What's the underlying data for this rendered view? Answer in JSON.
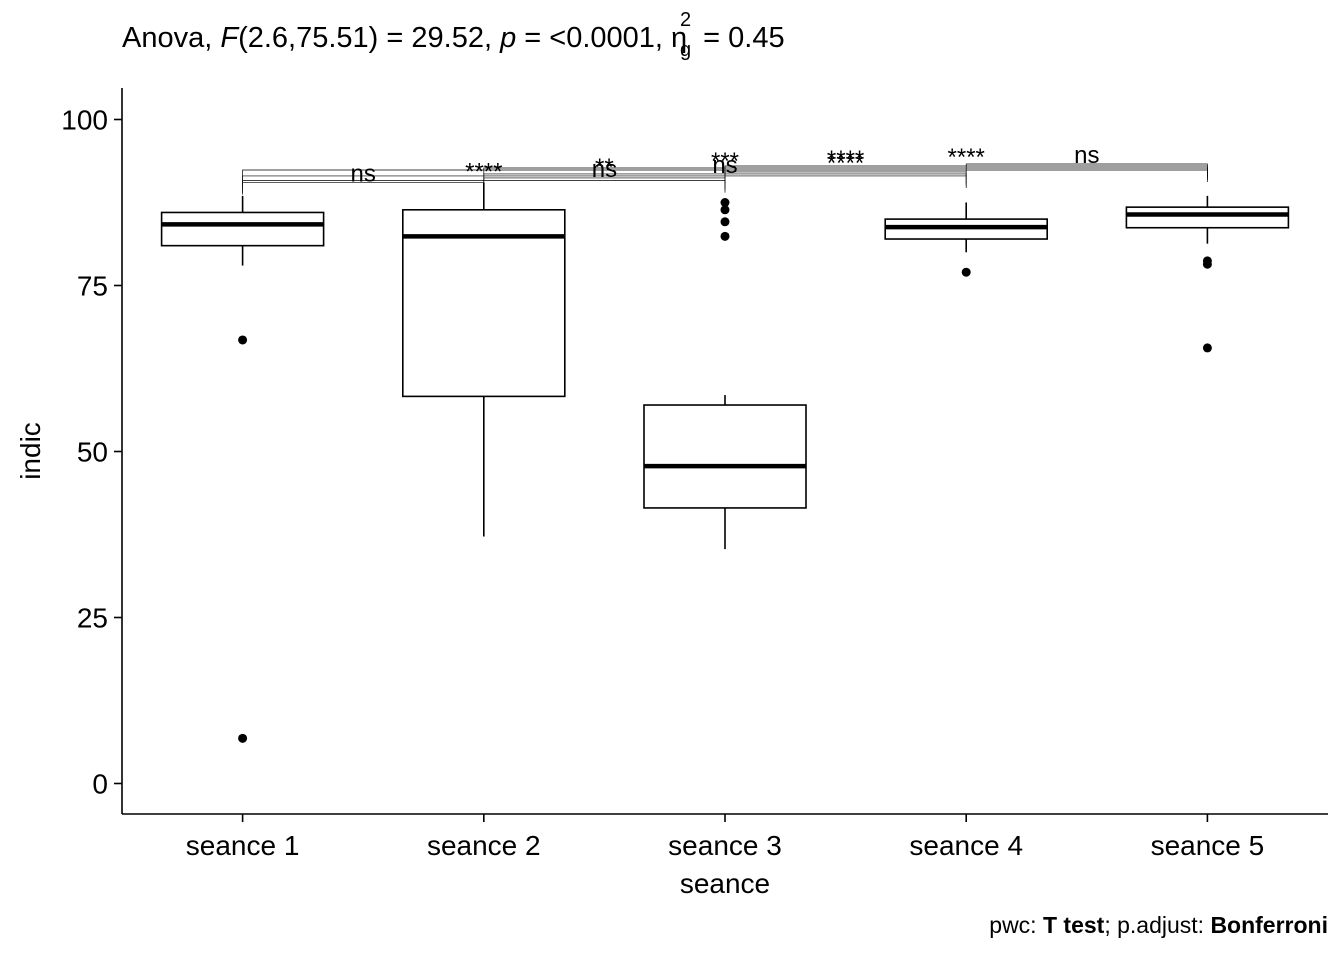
{
  "title": {
    "prefix": "Anova,",
    "f_symbol": "F",
    "f_args": "(2.6,75.51) = 29.52,",
    "p_symbol": "p",
    "p_value": "= <0.0001,",
    "eta_symbol": "η",
    "eta_sup": "2",
    "eta_sub": "g",
    "eta_value": "= 0.45"
  },
  "caption": {
    "pwc_label": "pwc:",
    "pwc_value": "T test",
    "sep": "; p.adjust:",
    "adjust_value": "Bonferroni"
  },
  "chart_data": {
    "type": "boxplot",
    "xlabel": "seance",
    "ylabel": "indic",
    "ylim": [
      -4.5,
      100
    ],
    "yticks": [
      0,
      25,
      50,
      75,
      100
    ],
    "grid": false,
    "categories": [
      "seance 1",
      "seance 2",
      "seance 3",
      "seance 4",
      "seance 5"
    ],
    "boxes": [
      {
        "category": "seance 1",
        "whisker_low": 78,
        "q1": 81,
        "median": 84.2,
        "q3": 86,
        "whisker_high": 88.5,
        "outliers": [
          66.8,
          6.8
        ]
      },
      {
        "category": "seance 2",
        "whisker_low": 37.2,
        "q1": 58.3,
        "median": 82.4,
        "q3": 86.4,
        "whisker_high": 90.5,
        "outliers": []
      },
      {
        "category": "seance 3",
        "whisker_low": 35.3,
        "q1": 41.5,
        "median": 47.8,
        "q3": 57,
        "whisker_high": 58.5,
        "outliers": [
          82.4,
          84.6,
          86.4,
          87.5
        ]
      },
      {
        "category": "seance 4",
        "whisker_low": 80,
        "q1": 82,
        "median": 83.8,
        "q3": 85,
        "whisker_high": 87.5,
        "outliers": [
          77
        ]
      },
      {
        "category": "seance 5",
        "whisker_low": 81.3,
        "q1": 83.7,
        "median": 85.7,
        "q3": 86.8,
        "whisker_high": 88.5,
        "outliers": [
          78.2,
          78.7,
          65.6
        ]
      }
    ],
    "comparisons": [
      {
        "from": "seance 1",
        "to": "seance 2",
        "y": 90.5,
        "label": "ns"
      },
      {
        "from": "seance 1",
        "to": "seance 3",
        "y": 90.8,
        "label": "****"
      },
      {
        "from": "seance 2",
        "to": "seance 3",
        "y": 91.2,
        "label": "ns"
      },
      {
        "from": "seance 1",
        "to": "seance 4",
        "y": 91.5,
        "label": "**"
      },
      {
        "from": "seance 2",
        "to": "seance 4",
        "y": 91.8,
        "label": "ns"
      },
      {
        "from": "seance 3",
        "to": "seance 4",
        "y": 92.1,
        "label": "****"
      },
      {
        "from": "seance 1",
        "to": "seance 5",
        "y": 92.4,
        "label": "***"
      },
      {
        "from": "seance 2",
        "to": "seance 5",
        "y": 92.7,
        "label": "****"
      },
      {
        "from": "seance 3",
        "to": "seance 5",
        "y": 93.0,
        "label": "****"
      },
      {
        "from": "seance 4",
        "to": "seance 5",
        "y": 93.3,
        "label": "ns"
      }
    ]
  }
}
